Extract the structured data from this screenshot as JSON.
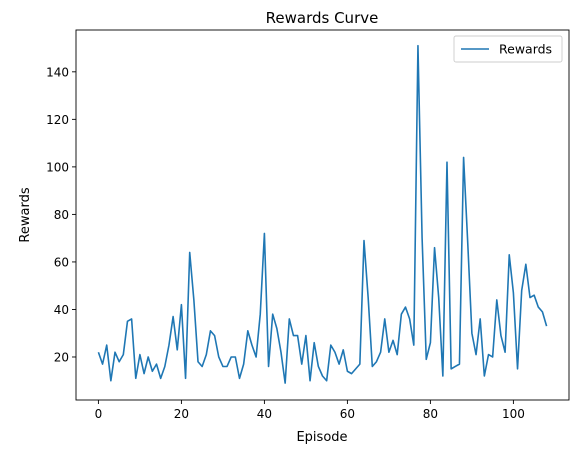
{
  "chart_data": {
    "type": "line",
    "title": "Rewards Curve",
    "xlabel": "Episode",
    "ylabel": "Rewards",
    "xlim": [
      -5.4,
      113.4
    ],
    "ylim": [
      1.9,
      157.6
    ],
    "xticks": [
      0,
      20,
      40,
      60,
      80,
      100
    ],
    "yticks": [
      20,
      40,
      60,
      80,
      100,
      120,
      140
    ],
    "grid": false,
    "legend_position": "top-right",
    "series": [
      {
        "name": "Rewards",
        "color": "#1f77b4",
        "x": [
          0,
          1,
          2,
          3,
          4,
          5,
          6,
          7,
          8,
          9,
          10,
          11,
          12,
          13,
          14,
          15,
          16,
          17,
          18,
          19,
          20,
          21,
          22,
          23,
          24,
          25,
          26,
          27,
          28,
          29,
          30,
          31,
          32,
          33,
          34,
          35,
          36,
          37,
          38,
          39,
          40,
          41,
          42,
          43,
          44,
          45,
          46,
          47,
          48,
          49,
          50,
          51,
          52,
          53,
          54,
          55,
          56,
          57,
          58,
          59,
          60,
          61,
          62,
          63,
          64,
          65,
          66,
          67,
          68,
          69,
          70,
          71,
          72,
          73,
          74,
          75,
          76,
          77,
          78,
          79,
          80,
          81,
          82,
          83,
          84,
          85,
          86,
          87,
          88,
          89,
          90,
          91,
          92,
          93,
          94,
          95,
          96,
          97,
          98,
          99,
          100,
          101,
          102,
          103,
          104,
          105,
          106,
          107,
          108
        ],
        "values": [
          22,
          17,
          25,
          10,
          22,
          18,
          21,
          35,
          36,
          11,
          21,
          13,
          20,
          14,
          17,
          11,
          16,
          25,
          37,
          23,
          42,
          11,
          64,
          44,
          18,
          16,
          21,
          31,
          29,
          20,
          16,
          16,
          20,
          20,
          11,
          17,
          31,
          25,
          20,
          38,
          72,
          16,
          38,
          32,
          22,
          9,
          36,
          29,
          29,
          17,
          29,
          10,
          26,
          16,
          12,
          10,
          25,
          22,
          17,
          23,
          14,
          13,
          15,
          17,
          69,
          45,
          16,
          18,
          22,
          36,
          22,
          27,
          21,
          38,
          41,
          36,
          25,
          151,
          70,
          19,
          26,
          66,
          45,
          12,
          102,
          15,
          16,
          17,
          104,
          68,
          30,
          21,
          36,
          12,
          21,
          20,
          44,
          29,
          22,
          63,
          47,
          15,
          48,
          59,
          45,
          46,
          41,
          39,
          33
        ]
      }
    ]
  }
}
